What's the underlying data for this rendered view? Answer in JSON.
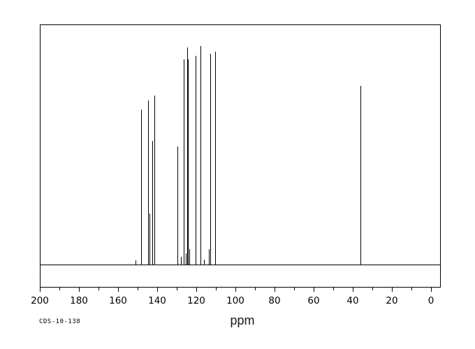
{
  "meta": {
    "document_id": "CDS-10-138"
  },
  "chart_data": {
    "type": "line",
    "subtype": "nmr-spectrum-13C",
    "title": "",
    "xlabel": "ppm",
    "ylabel": "",
    "annotation": "CDS-10-138",
    "x_axis": {
      "min": 0,
      "max": 200,
      "reversed": true,
      "major_tick_step": 20,
      "minor_tick_step": 10,
      "tick_labels": [
        "200",
        "180",
        "160",
        "140",
        "120",
        "100",
        "80",
        "60",
        "40",
        "20",
        "0"
      ]
    },
    "y_axis": {
      "visible": false
    },
    "grid": false,
    "legend": false,
    "line_color": "#000000",
    "background_color": "#ffffff",
    "peaks": [
      {
        "ppm": 151.0,
        "intensity": 0.017
      },
      {
        "ppm": 148.2,
        "intensity": 0.647
      },
      {
        "ppm": 144.5,
        "intensity": 0.685
      },
      {
        "ppm": 143.9,
        "intensity": 0.213
      },
      {
        "ppm": 142.4,
        "intensity": 0.516
      },
      {
        "ppm": 141.6,
        "intensity": 0.706
      },
      {
        "ppm": 129.6,
        "intensity": 0.493
      },
      {
        "ppm": 127.9,
        "intensity": 0.032
      },
      {
        "ppm": 126.3,
        "intensity": 0.857
      },
      {
        "ppm": 125.4,
        "intensity": 0.047
      },
      {
        "ppm": 124.7,
        "intensity": 0.907
      },
      {
        "ppm": 124.3,
        "intensity": 0.857
      },
      {
        "ppm": 123.6,
        "intensity": 0.064
      },
      {
        "ppm": 120.4,
        "intensity": 0.872
      },
      {
        "ppm": 117.8,
        "intensity": 0.913
      },
      {
        "ppm": 116.0,
        "intensity": 0.02
      },
      {
        "ppm": 113.6,
        "intensity": 0.064
      },
      {
        "ppm": 112.9,
        "intensity": 0.881
      },
      {
        "ppm": 110.3,
        "intensity": 0.889
      },
      {
        "ppm": 36.1,
        "intensity": 0.746
      }
    ]
  }
}
